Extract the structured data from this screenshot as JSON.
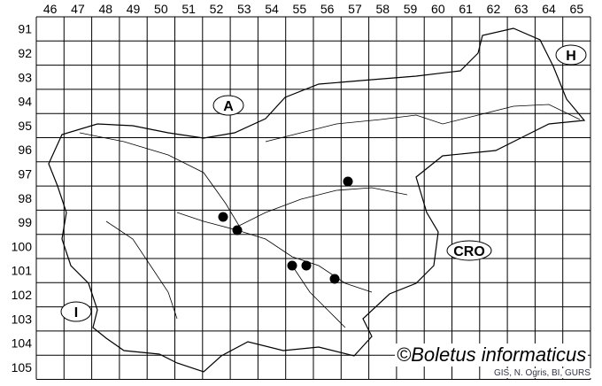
{
  "map": {
    "column_labels": [
      "46",
      "47",
      "48",
      "49",
      "50",
      "51",
      "52",
      "53",
      "54",
      "55",
      "56",
      "57",
      "58",
      "59",
      "60",
      "61",
      "62",
      "63",
      "64",
      "65"
    ],
    "row_labels": [
      "91",
      "92",
      "93",
      "94",
      "95",
      "96",
      "97",
      "98",
      "99",
      "100",
      "101",
      "102",
      "103",
      "104",
      "105"
    ],
    "country_labels": [
      {
        "id": "austria",
        "text": "A"
      },
      {
        "id": "hungary",
        "text": "H"
      },
      {
        "id": "croatia",
        "text": "CRO"
      },
      {
        "id": "italy",
        "text": "I"
      }
    ],
    "occurrence_records": [
      {
        "column": "57",
        "row": "97"
      },
      {
        "column": "52",
        "row": "99"
      },
      {
        "column": "53",
        "row": "99"
      },
      {
        "column": "55",
        "row": "101"
      },
      {
        "column": "55",
        "row": "101"
      },
      {
        "column": "56",
        "row": "101"
      }
    ],
    "colors": {
      "marker": "#000000",
      "lines": "#000000",
      "background": "#ffffff"
    }
  },
  "copyright": "©Boletus informaticus",
  "source_credit": "GIS, N. Ogris, BI, GURS"
}
